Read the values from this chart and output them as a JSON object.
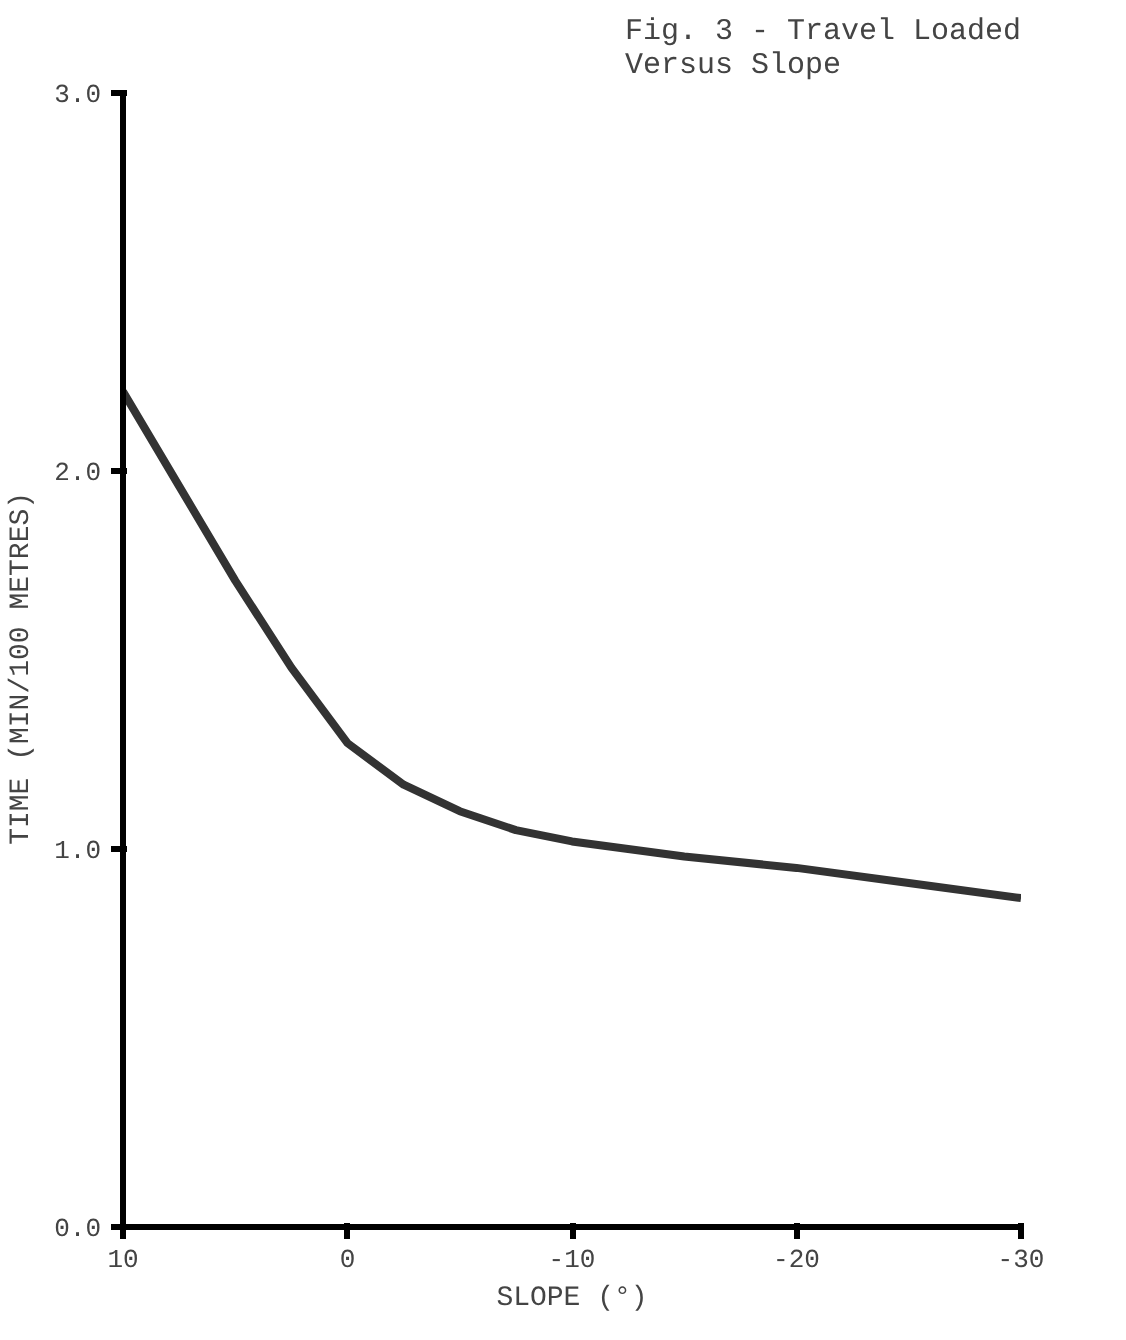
{
  "chart_data": {
    "type": "line",
    "title": "Fig. 3 - Travel Loaded\nVersus Slope",
    "xlabel": "SLOPE (°)",
    "ylabel": "TIME  (MIN/100 METRES)",
    "x": [
      10,
      7.5,
      5,
      2.5,
      0,
      -2.5,
      -5,
      -7.5,
      -10,
      -15,
      -20,
      -25,
      -30
    ],
    "series": [
      {
        "color": "#333333",
        "values": [
          2.21,
          1.96,
          1.71,
          1.48,
          1.28,
          1.17,
          1.1,
          1.05,
          1.02,
          0.98,
          0.95,
          0.91,
          0.87
        ]
      }
    ],
    "xlim": [
      10,
      -30
    ],
    "xticks": [
      10,
      0,
      -10,
      -20,
      -30
    ],
    "ylim": [
      0,
      3
    ],
    "yticks": [
      {
        "value": 0,
        "label": "0.0"
      },
      {
        "value": 1,
        "label": "1.0"
      },
      {
        "value": 2,
        "label": "2.0"
      },
      {
        "value": 3,
        "label": "3.0"
      }
    ],
    "grid": false,
    "marker": "none",
    "line_style": "solid"
  }
}
